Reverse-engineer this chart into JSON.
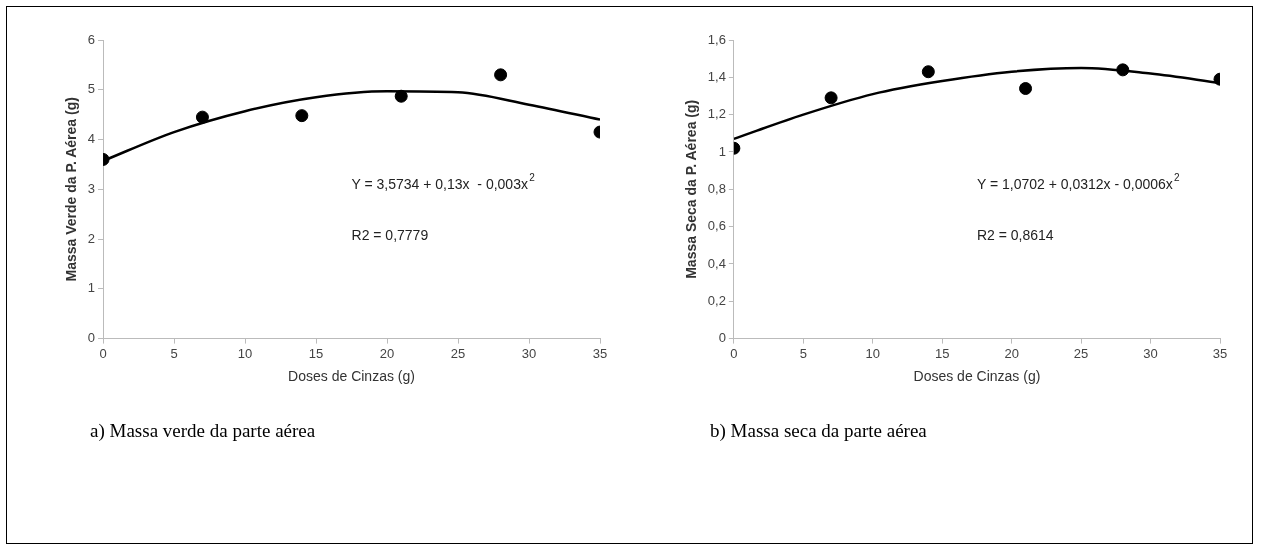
{
  "chart_data": [
    {
      "type": "scatter",
      "title": "a)  Massa verde da parte aérea",
      "xlabel": "Doses de Cinzas (g)",
      "ylabel": "Massa Verde da P. Aérea (g)",
      "xlim": [
        0,
        35
      ],
      "xticks": [
        0,
        5,
        10,
        15,
        20,
        25,
        30,
        35
      ],
      "ylim": [
        0,
        6
      ],
      "yticks": [
        0,
        1,
        2,
        3,
        4,
        5,
        6
      ],
      "grid": false,
      "legend": false,
      "marker": "circle",
      "annotations": [
        "Y = 3,5734 + 0,13x  - 0,003x$^{2}$",
        "R2 = 0,7779"
      ],
      "series": [
        {
          "color": "#000000",
          "x": [
            0,
            7,
            14,
            21,
            28,
            35
          ],
          "values": [
            3.6,
            4.45,
            4.48,
            4.87,
            5.3,
            4.15
          ]
        },
        {
          "type": "line",
          "color": "#000000",
          "marker": "none",
          "line_style": "solid",
          "x": [
            0,
            5,
            10,
            15,
            20,
            25,
            30,
            35
          ],
          "values": [
            3.57,
            4.15,
            4.57,
            4.85,
            4.97,
            4.95,
            4.7,
            4.4
          ]
        }
      ]
    },
    {
      "type": "scatter",
      "title": "b)  Massa seca da parte aérea",
      "xlabel": "Doses de Cinzas (g)",
      "ylabel": "Massa Seca da P. Aérea (g)",
      "xlim": [
        0,
        35
      ],
      "xticks": [
        0,
        5,
        10,
        15,
        20,
        25,
        30,
        35
      ],
      "ylim": [
        0,
        1.6
      ],
      "yticks": [
        0,
        {
          "value": 0.2,
          "label": "0,2"
        },
        {
          "value": 0.4,
          "label": "0,4"
        },
        {
          "value": 0.6,
          "label": "0,6"
        },
        {
          "value": 0.8,
          "label": "0,8"
        },
        1,
        {
          "value": 1.2,
          "label": "1,2"
        },
        {
          "value": 1.4,
          "label": "1,4"
        },
        {
          "value": 1.6,
          "label": "1,6"
        }
      ],
      "grid": false,
      "legend": false,
      "marker": "circle",
      "annotations": [
        "Y = 1,0702 + 0,0312x - 0,0006x$^{2}$",
        "R2 = 0,8614"
      ],
      "series": [
        {
          "color": "#000000",
          "x": [
            0,
            7,
            14,
            21,
            28,
            35
          ],
          "values": [
            1.02,
            1.29,
            1.43,
            1.34,
            1.44,
            1.39
          ]
        },
        {
          "type": "line",
          "color": "#000000",
          "marker": "none",
          "line_style": "solid",
          "x": [
            0,
            5,
            10,
            15,
            20,
            25,
            30,
            35
          ],
          "values": [
            1.07,
            1.2,
            1.31,
            1.38,
            1.43,
            1.45,
            1.42,
            1.37
          ]
        }
      ]
    }
  ]
}
